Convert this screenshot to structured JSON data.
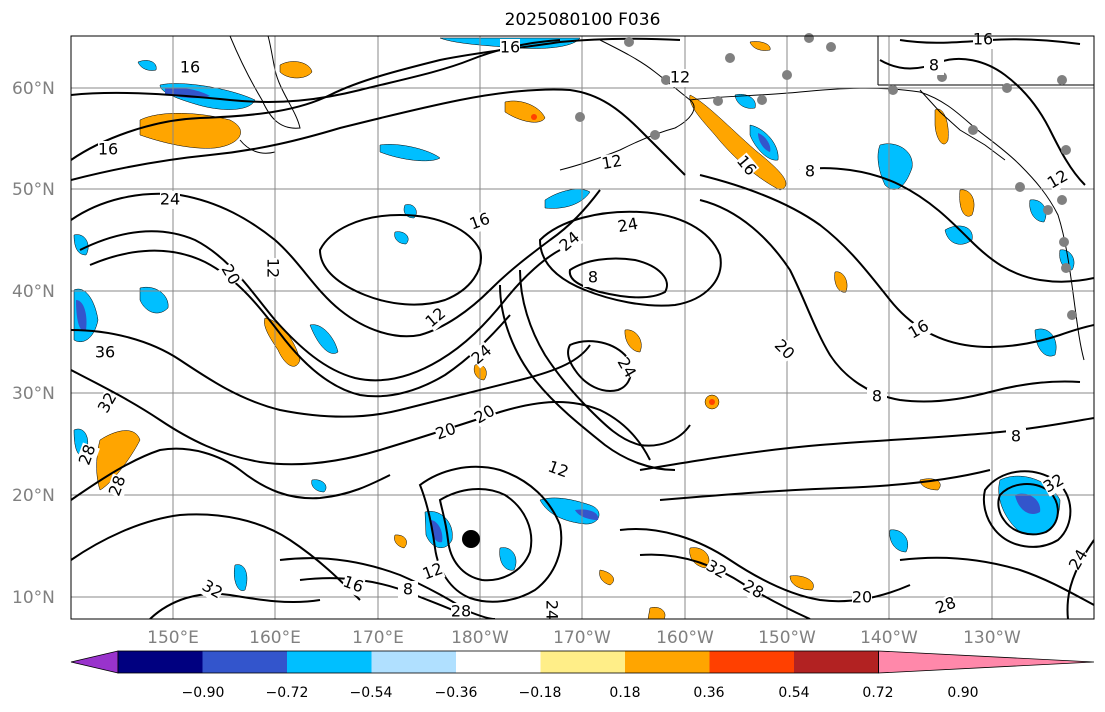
{
  "title": "2025080100 F036",
  "latitude_labels": [
    "60°N",
    "50°N",
    "40°N",
    "30°N",
    "20°N",
    "10°N"
  ],
  "longitude_labels": [
    "150°E",
    "160°E",
    "170°E",
    "180°W",
    "170°W",
    "160°W",
    "150°W",
    "140°W",
    "130°W"
  ],
  "colorbar": {
    "colors": [
      "#9933cc",
      "#000080",
      "#3355cc",
      "#00bfff",
      "#b0e0ff",
      "#ffffff",
      "#ffee88",
      "#ffa500",
      "#ff4000",
      "#b22222",
      "#ff88aa"
    ],
    "tick_labels": [
      "−0.90",
      "−0.72",
      "−0.54",
      "−0.36",
      "−0.18",
      "0.18",
      "0.36",
      "0.54",
      "0.72",
      "0.90"
    ]
  },
  "contour_labels": [
    "16",
    "16",
    "16",
    "24",
    "20",
    "12",
    "16",
    "12",
    "24",
    "24",
    "8",
    "12",
    "8",
    "16",
    "20",
    "24",
    "12",
    "24",
    "20",
    "36",
    "32",
    "28",
    "28",
    "12",
    "16",
    "8",
    "28",
    "24",
    "32",
    "28",
    "20",
    "32",
    "8",
    "8",
    "28",
    "24",
    "32",
    "16",
    "8",
    "12",
    "16",
    "20",
    "12"
  ],
  "markers": {
    "storm_color": "#000000",
    "station_color": "#808080"
  }
}
